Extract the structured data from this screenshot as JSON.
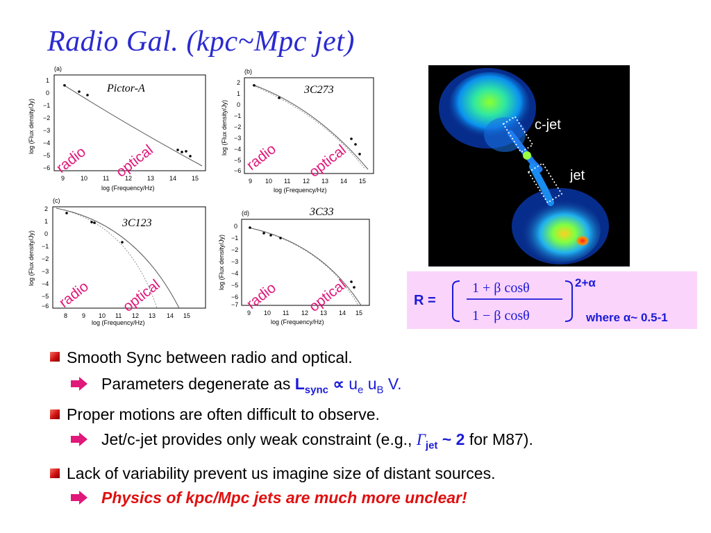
{
  "slide": {
    "title": "Radio Gal. (kpc~Mpc jet)",
    "plots": [
      {
        "panel": "(a)",
        "source": "Pictor-A",
        "xlabel": "log (Frequency/Hz)",
        "ylabel": "log (Flux density/Jy)",
        "xticks": [
          "9",
          "10",
          "11",
          "12",
          "13",
          "14",
          "15"
        ],
        "yticks": [
          "1",
          "0",
          "−1",
          "−2",
          "−3",
          "−4",
          "−5",
          "−6"
        ],
        "radio_label": "radio",
        "optical_label": "optical"
      },
      {
        "panel": "(b)",
        "source": "3C273",
        "xlabel": "log (Frequency/Hz)",
        "ylabel": "log (Flux density/Jy)",
        "xticks": [
          "9",
          "10",
          "11",
          "12",
          "13",
          "14",
          "15"
        ],
        "yticks": [
          "2",
          "1",
          "0",
          "−1",
          "−2",
          "−3",
          "−4",
          "−5",
          "−6"
        ],
        "radio_label": "radio",
        "optical_label": "optical"
      },
      {
        "panel": "(c)",
        "source": "3C123",
        "xlabel": "log (Frequency/Hz)",
        "ylabel": "log (Flux density/Jy)",
        "xticks": [
          "8",
          "9",
          "10",
          "11",
          "12",
          "13",
          "14",
          "15"
        ],
        "yticks": [
          "2",
          "1",
          "0",
          "−1",
          "−2",
          "−3",
          "−4",
          "−5",
          "−6"
        ],
        "radio_label": "radio",
        "optical_label": "optical"
      },
      {
        "panel": "(d)",
        "source": "3C33",
        "xlabel": "log (Frequency/Hz)",
        "ylabel": "log (Flux density/Jy)",
        "xticks": [
          "9",
          "10",
          "11",
          "12",
          "13",
          "14",
          "15"
        ],
        "yticks": [
          "0",
          "−1",
          "−2",
          "−3",
          "−4",
          "−5",
          "−6",
          "−7"
        ],
        "radio_label": "radio",
        "optical_label": "optical"
      }
    ],
    "image_labels": {
      "cjet": "c-jet",
      "jet": "jet"
    },
    "formula": {
      "lhs": "R =",
      "numerator": "1 + β cosθ",
      "denominator": "1 − β cosθ",
      "exponent": "2+α",
      "note": "where α~ 0.5-1"
    },
    "bullets": [
      {
        "text": "Smooth Sync between radio and optical.",
        "sub": {
          "pre": "Parameters degenerate as ",
          "L": "L",
          "sync": "sync",
          "prop": " ∝ ",
          "ue": "u",
          "e": "e",
          "uB": " u",
          "B": "B",
          "post": " V."
        }
      },
      {
        "text": "Proper motions are often difficult to observe.",
        "sub": {
          "pre": "Jet/c-jet provides only weak constraint (e.g., ",
          "gamma": "Γ",
          "jet": "jet",
          "val": " ~ 2",
          "post": " for M87)."
        }
      },
      {
        "text": "Lack of variability prevent us imagine size of distant sources.",
        "sub": {
          "text": "Physics of kpc/Mpc jets are much more unclear!"
        }
      }
    ],
    "colors": {
      "title": "#2a2ad0",
      "label": "#e0187a",
      "accent_blue": "#1a1ad8",
      "accent_red": "#e01010",
      "formula_bg": "#fbd4fb"
    }
  }
}
